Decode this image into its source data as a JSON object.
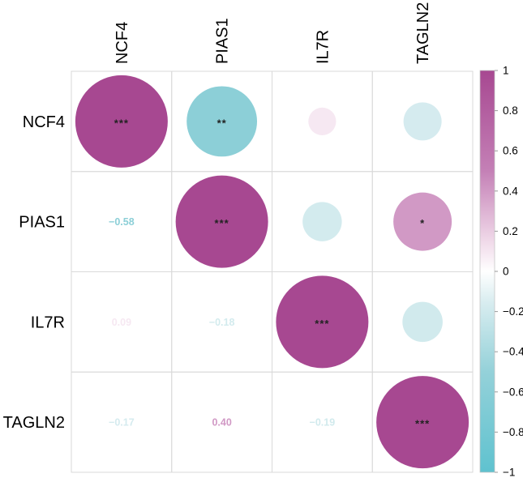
{
  "figure": {
    "background": "#ffffff",
    "grid_color": "#d9d9d9",
    "label_color": "#000000",
    "star_color": "#222222"
  },
  "chart_data": {
    "type": "heatmap",
    "subtype": "correlation-bubble-matrix",
    "title": "",
    "variables": [
      "NCF4",
      "PIAS1",
      "IL7R",
      "TAGLN2"
    ],
    "matrix": [
      [
        1.0,
        -0.58,
        0.09,
        -0.17
      ],
      [
        -0.58,
        1.0,
        -0.18,
        0.4
      ],
      [
        0.09,
        -0.18,
        1.0,
        -0.19
      ],
      [
        -0.17,
        0.4,
        -0.19,
        1.0
      ]
    ],
    "significance": [
      [
        "***",
        "**",
        "",
        ""
      ],
      [
        "",
        "***",
        "",
        "*"
      ],
      [
        "",
        "",
        "***",
        ""
      ],
      [
        "",
        "",
        "",
        "***"
      ]
    ],
    "layout_hints": {
      "upper_triangle": "circles sized and colored by correlation",
      "lower_triangle": "numeric correlation values colored by correlation",
      "diagonal": "full-size circles (r = 1) with *** markers",
      "grid": "on",
      "legend_position": "right"
    },
    "colorbar": {
      "range": [
        -1,
        1
      ],
      "ticks": [
        1,
        0.8,
        0.6,
        0.4,
        0.2,
        0,
        -0.2,
        -0.4,
        -0.6,
        -0.8,
        -1
      ],
      "gradient_stops": [
        {
          "value": 1,
          "color": "#a74891"
        },
        {
          "value": 0.5,
          "color": "#c480b6"
        },
        {
          "value": 0.15,
          "color": "#f0d9e9"
        },
        {
          "value": 0,
          "color": "#ffffff"
        },
        {
          "value": -0.15,
          "color": "#d9edf0"
        },
        {
          "value": -0.5,
          "color": "#94d1d9"
        },
        {
          "value": -1,
          "color": "#5fc2cf"
        }
      ]
    }
  }
}
